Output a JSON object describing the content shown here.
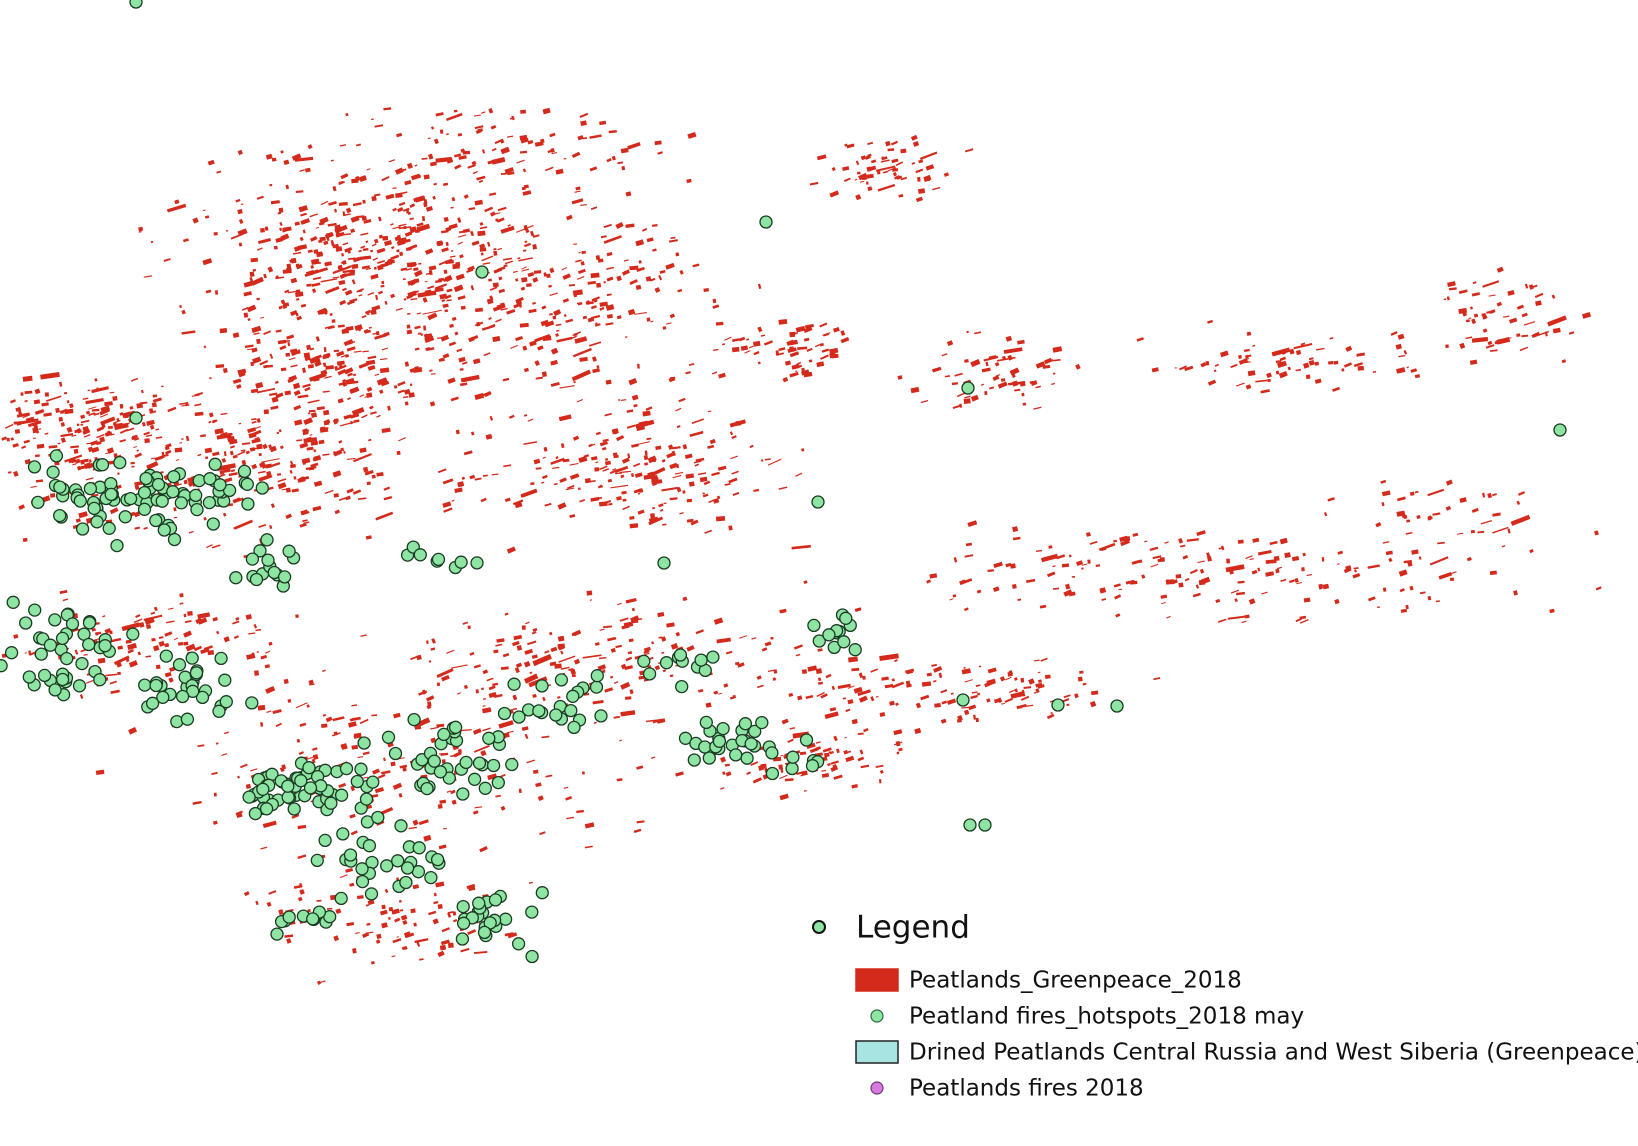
{
  "legend": {
    "title": "Legend",
    "items": [
      {
        "label": "Peatlands_Greenpeace_2018",
        "symbol": "rect",
        "color": "#d42a1c",
        "stroke": "#d42a1c"
      },
      {
        "label": "Peatland fires_hotspots_2018 may",
        "symbol": "circle",
        "color": "#8ee4a2",
        "stroke": "#2a6a3a"
      },
      {
        "label": "Drined Peatlands Central Russia and West Siberia (Greenpeace)",
        "symbol": "rect",
        "color": "#a8e4e2",
        "stroke": "#222222"
      },
      {
        "label": "Peatlands fires 2018",
        "symbol": "circle",
        "color": "#d679e0",
        "stroke": "#6a3a70"
      }
    ]
  }
}
